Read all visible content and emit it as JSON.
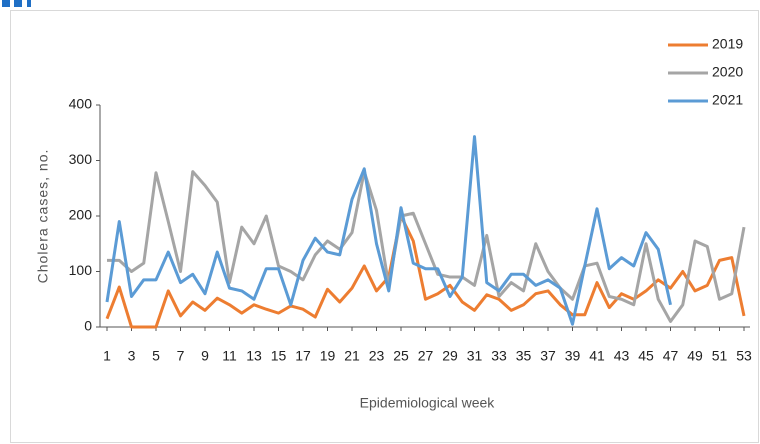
{
  "chart_data": {
    "type": "line",
    "ylabel": "Cholera cases, no.",
    "xlabel": "Epidemiological week",
    "x": [
      1,
      2,
      3,
      4,
      5,
      6,
      7,
      8,
      9,
      10,
      11,
      12,
      13,
      14,
      15,
      16,
      17,
      18,
      19,
      20,
      21,
      22,
      23,
      24,
      25,
      26,
      27,
      28,
      29,
      30,
      31,
      32,
      33,
      34,
      35,
      36,
      37,
      38,
      39,
      40,
      41,
      42,
      43,
      44,
      45,
      46,
      47,
      48,
      49,
      50,
      51,
      52,
      53
    ],
    "xlim": [
      1,
      53
    ],
    "xticks": [
      1,
      3,
      5,
      7,
      9,
      11,
      13,
      15,
      17,
      19,
      21,
      23,
      25,
      27,
      29,
      31,
      33,
      35,
      37,
      39,
      41,
      43,
      45,
      47,
      49,
      51,
      53
    ],
    "ylim": [
      0,
      400
    ],
    "yticks": [
      0,
      100,
      200,
      300,
      400
    ],
    "grid": false,
    "legend": "top-right",
    "series": [
      {
        "name": "2019",
        "color": "#ed7d31",
        "values": [
          15,
          72,
          0,
          0,
          0,
          65,
          20,
          45,
          30,
          52,
          40,
          25,
          40,
          32,
          25,
          38,
          32,
          18,
          68,
          45,
          70,
          110,
          65,
          90,
          200,
          155,
          50,
          60,
          75,
          45,
          30,
          58,
          50,
          30,
          40,
          60,
          65,
          40,
          22,
          22,
          80,
          35,
          60,
          50,
          65,
          85,
          70,
          100,
          65,
          75,
          120,
          125,
          20
        ]
      },
      {
        "name": "2020",
        "color": "#a5a5a5",
        "values": [
          120,
          120,
          100,
          115,
          278,
          190,
          100,
          280,
          255,
          225,
          80,
          180,
          150,
          200,
          110,
          100,
          85,
          130,
          155,
          140,
          170,
          280,
          210,
          75,
          200,
          205,
          150,
          95,
          90,
          90,
          75,
          165,
          55,
          80,
          65,
          150,
          100,
          70,
          50,
          110,
          115,
          55,
          50,
          40,
          150,
          50,
          10,
          40,
          155,
          145,
          50,
          60,
          180
        ]
      },
      {
        "name": "2021",
        "color": "#5b9bd5",
        "values": [
          45,
          190,
          55,
          85,
          85,
          135,
          80,
          95,
          60,
          135,
          70,
          65,
          50,
          105,
          105,
          40,
          120,
          160,
          135,
          130,
          230,
          285,
          150,
          65,
          215,
          115,
          105,
          105,
          55,
          90,
          343,
          80,
          65,
          95,
          95,
          75,
          85,
          70,
          5,
          110,
          213,
          105,
          125,
          110,
          170,
          140,
          40,
          null,
          null,
          null,
          null,
          null,
          null
        ]
      }
    ]
  }
}
